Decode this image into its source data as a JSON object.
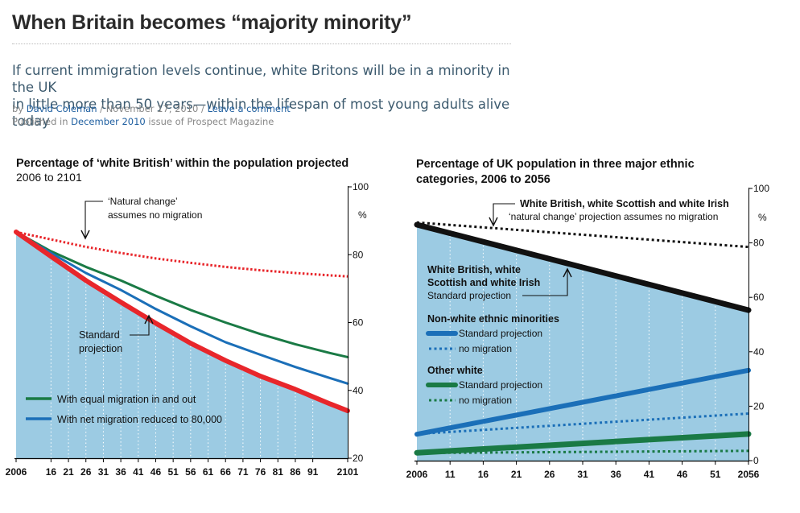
{
  "article": {
    "headline": "When Britain becomes “majority minority”",
    "standfirst_line1": "If current immigration levels continue, white Britons will be in a minority in the UK",
    "standfirst_line2": "in little more than 50 years—within the lifespan of most young adults alive today",
    "by_prefix": "by",
    "author": "David Coleman",
    "sep1": "/",
    "date": "November 17, 2010",
    "sep2": "/",
    "comment_link": "Leave a comment",
    "published_prefix": "Published in",
    "issue_link": "December 2010",
    "published_suffix": "issue of Prospect Magazine"
  },
  "colors": {
    "fill": "#9ccbe3",
    "red": "#e8262b",
    "green": "#1a7a45",
    "blue": "#1b6fb8",
    "black": "#111111"
  },
  "chart_data": [
    {
      "type": "line",
      "title_line1": "Percentage of ‘white British’ within the population projected",
      "title_line2": "2006 to 2101",
      "unit": "%",
      "x_tick_labels": [
        "2006",
        "16",
        "21",
        "26",
        "31",
        "36",
        "41",
        "46",
        "51",
        "56",
        "61",
        "66",
        "71",
        "76",
        "81",
        "86",
        "91",
        "2101"
      ],
      "x_tick_years": [
        2006,
        2016,
        2021,
        2026,
        2031,
        2036,
        2041,
        2046,
        2051,
        2056,
        2061,
        2066,
        2071,
        2076,
        2081,
        2086,
        2091,
        2101
      ],
      "xlim": [
        2006,
        2101
      ],
      "ylim": [
        20,
        100
      ],
      "y_ticks": [
        20,
        40,
        60,
        80,
        100
      ],
      "x": [
        2006,
        2016,
        2026,
        2036,
        2046,
        2056,
        2066,
        2076,
        2086,
        2096,
        2101
      ],
      "series": [
        {
          "key": "natural",
          "color": "red",
          "style": "dotted",
          "values": [
            86.7,
            84.5,
            82.3,
            80.5,
            78.9,
            77.6,
            76.4,
            75.4,
            74.6,
            73.9,
            73.6
          ]
        },
        {
          "key": "equal",
          "name": "With equal migration in and out",
          "color": "green",
          "style": "solid",
          "values": [
            86.7,
            81.0,
            76.4,
            72.4,
            67.9,
            63.7,
            60.0,
            56.6,
            53.6,
            51.0,
            49.8
          ]
        },
        {
          "key": "reduced",
          "name": "With net migration reduced to 80,000",
          "color": "blue",
          "style": "solid",
          "values": [
            86.7,
            80.5,
            74.6,
            69.6,
            64.0,
            58.9,
            54.2,
            50.5,
            46.9,
            43.6,
            42.0
          ]
        },
        {
          "key": "standard",
          "color": "red",
          "style": "solid",
          "values": [
            86.7,
            79.5,
            72.4,
            66.0,
            59.8,
            53.9,
            48.8,
            44.2,
            40.3,
            36.0,
            34.0
          ]
        }
      ],
      "annotations": {
        "natural_line1": "‘Natural change’",
        "natural_line2": "assumes no migration",
        "standard_line1": "Standard",
        "standard_line2": "projection"
      },
      "legend": {
        "equal": "With equal migration in and out",
        "reduced": "With net migration reduced to 80,000"
      },
      "grid": "vertical dotted"
    },
    {
      "type": "line",
      "title_line1": "Percentage of UK population in three major ethnic",
      "title_line2": "categories, 2006 to 2056",
      "unit": "%",
      "x_tick_labels": [
        "2006",
        "11",
        "16",
        "21",
        "26",
        "31",
        "36",
        "41",
        "46",
        "51",
        "2056"
      ],
      "x_tick_years": [
        2006,
        2011,
        2016,
        2021,
        2026,
        2031,
        2036,
        2041,
        2046,
        2051,
        2056
      ],
      "xlim": [
        2006,
        2056
      ],
      "ylim": [
        0,
        100
      ],
      "y_ticks": [
        0,
        20,
        40,
        60,
        80,
        100
      ],
      "x": [
        2006,
        2056
      ],
      "series": [
        {
          "key": "wb_natural",
          "color": "black",
          "style": "dotted",
          "values": [
            87.5,
            78.5
          ]
        },
        {
          "key": "wb_standard",
          "color": "black",
          "style": "solid",
          "values": [
            86.7,
            55.3
          ]
        },
        {
          "key": "nw_standard",
          "color": "blue",
          "style": "solid",
          "values": [
            9.7,
            33.2
          ]
        },
        {
          "key": "nw_natural",
          "color": "blue",
          "style": "dotted",
          "values": [
            9.8,
            17.3
          ]
        },
        {
          "key": "ow_standard",
          "color": "green",
          "style": "solid",
          "values": [
            2.9,
            9.8
          ]
        },
        {
          "key": "ow_natural",
          "color": "green",
          "style": "dotted",
          "values": [
            2.8,
            3.6
          ]
        }
      ],
      "annotations": {
        "top_line1": "White British, white Scottish and white Irish",
        "top_line2": "‘natural change’ projection assumes no migration",
        "wb_line1": "White British, white",
        "wb_line2": "Scottish and white Irish",
        "wb_line3": "Standard projection"
      },
      "legend": {
        "nonwhite_heading": "Non-white ethnic minorities",
        "nonwhite_standard": "Standard projection",
        "nonwhite_nomig": "no migration",
        "other_heading": "Other white",
        "other_standard": "Standard projection",
        "other_nomig": "no migration"
      },
      "grid": "vertical dotted"
    }
  ]
}
